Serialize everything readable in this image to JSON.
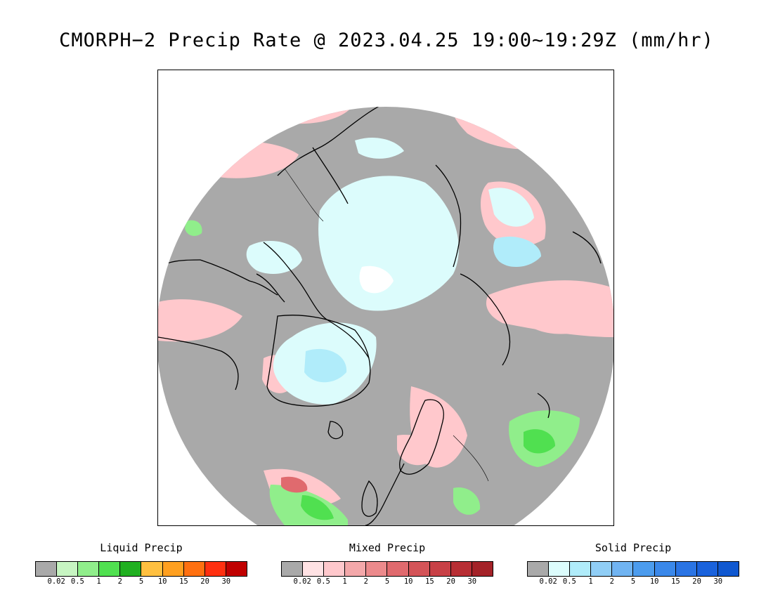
{
  "title": "CMORPH−2 Precip Rate @ 2023.04.25 19:00~19:29Z (mm/hr)",
  "map": {
    "projection": "north polar stereographic",
    "colors": {
      "background": "#a9a9a9",
      "coastline": "#000000"
    }
  },
  "legends": [
    {
      "title": "Liquid Precip",
      "ticks": [
        "0.02",
        "0.5",
        "1",
        "2",
        "5",
        "10",
        "15",
        "20",
        "30"
      ],
      "colors": [
        "#a9a9a9",
        "#c7f5c2",
        "#90ee8b",
        "#50e050",
        "#20b020",
        "#ffc040",
        "#ffa020",
        "#ff7010",
        "#ff3010",
        "#c00000"
      ]
    },
    {
      "title": "Mixed Precip",
      "ticks": [
        "0.02",
        "0.5",
        "1",
        "2",
        "5",
        "10",
        "15",
        "20",
        "30"
      ],
      "colors": [
        "#a9a9a9",
        "#ffe2e4",
        "#ffc8cc",
        "#f4a8aa",
        "#ec8a8c",
        "#e06a6e",
        "#d45458",
        "#c84046",
        "#b82e34",
        "#a42228"
      ]
    },
    {
      "title": "Solid Precip",
      "ticks": [
        "0.02",
        "0.5",
        "1",
        "2",
        "5",
        "10",
        "15",
        "20",
        "30"
      ],
      "colors": [
        "#a9a9a9",
        "#dcfcfc",
        "#b0ecfa",
        "#90cef6",
        "#70b4f2",
        "#4c9cee",
        "#3a88ea",
        "#2a74e4",
        "#1a62dc",
        "#1058d0"
      ]
    }
  ]
}
